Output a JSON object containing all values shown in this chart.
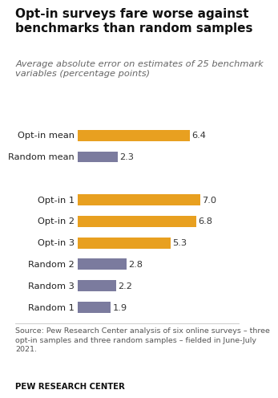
{
  "title": "Opt-in surveys fare worse against\nbenchmarks than random samples",
  "subtitle": "Average absolute error on estimates of 25 benchmark\nvariables (percentage points)",
  "categories": [
    "Opt-in mean",
    "Random mean",
    "",
    "Opt-in 1",
    "Opt-in 2",
    "Opt-in 3",
    "Random 2",
    "Random 3",
    "Random 1"
  ],
  "values": [
    6.4,
    2.3,
    0,
    7.0,
    6.8,
    5.3,
    2.8,
    2.2,
    1.9
  ],
  "colors": [
    "#E8A020",
    "#7B7B9E",
    "#ffffff",
    "#E8A020",
    "#E8A020",
    "#E8A020",
    "#7B7B9E",
    "#7B7B9E",
    "#7B7B9E"
  ],
  "value_labels": [
    "6.4",
    "2.3",
    "",
    "7.0",
    "6.8",
    "5.3",
    "2.8",
    "2.2",
    "1.9"
  ],
  "source_text": "Source: Pew Research Center analysis of six online surveys – three\nopt-in samples and three random samples – fielded in June-July\n2021.",
  "footer_text": "PEW RESEARCH CENTER",
  "xlim": [
    0,
    8.5
  ],
  "bar_height": 0.52,
  "background_color": "#ffffff",
  "title_fontsize": 11.0,
  "subtitle_fontsize": 8.2,
  "label_fontsize": 8.2,
  "value_fontsize": 8.2,
  "source_fontsize": 6.8
}
